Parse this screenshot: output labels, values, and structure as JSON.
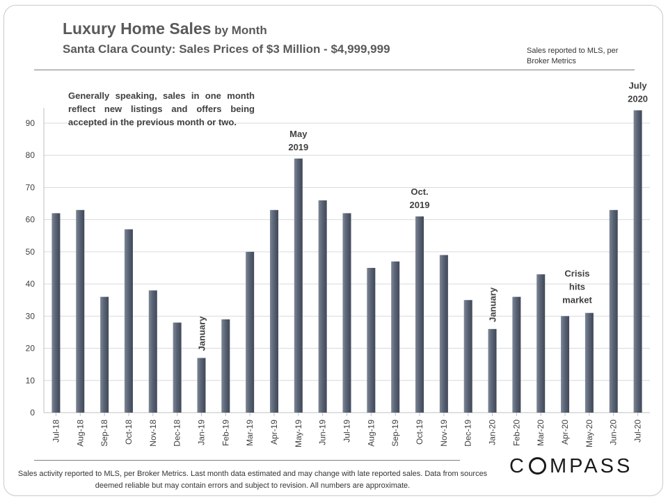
{
  "header": {
    "title_main": "Luxury Home Sales",
    "title_suffix": " by Month",
    "subtitle": "Santa Clara County:  Sales Prices of $3 Million  - $4,999,999",
    "source_note": "Sales reported to MLS, per Broker Metrics"
  },
  "note": "Generally speaking, sales in one month reflect new listings and offers being accepted in the previous month or two.",
  "footer": {
    "text": "Sales activity reported to MLS, per Broker Metrics. Last month data estimated and may change with late reported sales. Data from sources deemed reliable but may contain errors and subject to revision. All numbers are approximate."
  },
  "logo": {
    "before": "C",
    "after": "MPASS"
  },
  "chart_data": {
    "type": "bar",
    "categories": [
      "Jul-18",
      "Aug-18",
      "Sep-18",
      "Oct-18",
      "Nov-18",
      "Dec-18",
      "Jan-19",
      "Feb-19",
      "Mar-19",
      "Apr-19",
      "May-19",
      "Jun-19",
      "Jul-19",
      "Aug-19",
      "Sep-19",
      "Oct-19",
      "Nov-19",
      "Dec-19",
      "Jan-20",
      "Feb-20",
      "Mar-20",
      "Apr-20",
      "May-20",
      "Jun-20",
      "Jul-20"
    ],
    "values": [
      62,
      63,
      36,
      57,
      38,
      28,
      17,
      29,
      50,
      63,
      79,
      66,
      62,
      45,
      47,
      61,
      49,
      35,
      26,
      36,
      43,
      30,
      31,
      63,
      94
    ],
    "ylim": [
      0,
      95
    ],
    "yticks": [
      0,
      10,
      20,
      30,
      40,
      50,
      60,
      70,
      80,
      90
    ],
    "grid": true,
    "bar_color": "#5a6475",
    "annotations": [
      {
        "category": "Jan-19",
        "lines": [
          "January"
        ],
        "vertical": true
      },
      {
        "category": "May-19",
        "lines": [
          "May",
          "2019"
        ],
        "vertical": false
      },
      {
        "category": "Oct-19",
        "lines": [
          "Oct.",
          "2019"
        ],
        "vertical": false
      },
      {
        "category": "Jan-20",
        "lines": [
          "January"
        ],
        "vertical": true
      },
      {
        "category": "Apr-20",
        "lines": [
          "Crisis",
          "hits",
          "market"
        ],
        "vertical": false,
        "center_between": "May-20"
      },
      {
        "category": "Jul-20",
        "lines": [
          "July",
          "2020"
        ],
        "vertical": false
      }
    ]
  }
}
